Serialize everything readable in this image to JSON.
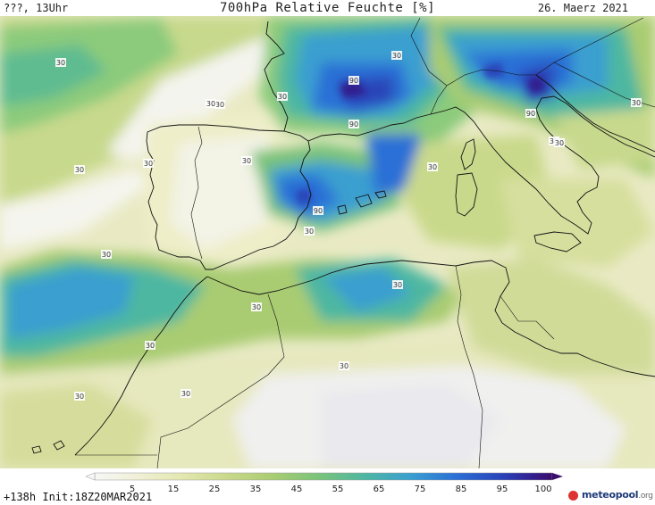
{
  "header": {
    "left_text": "???, 13Uhr",
    "title": "700hPa Relative Feuchte [%]",
    "date": "26. Maerz 2021"
  },
  "footer": {
    "run_info": "+138h  Init:18Z20MAR2021",
    "logo_text": "meteopool",
    "logo_suffix": ".org"
  },
  "legend": {
    "ticks": [
      "5",
      "15",
      "25",
      "35",
      "45",
      "55",
      "65",
      "75",
      "85",
      "95",
      "100"
    ],
    "colors": [
      "#f7f7f7",
      "#f1f0d8",
      "#e3e7b0",
      "#c9d98b",
      "#a9cc72",
      "#7ac37a",
      "#4eb7a1",
      "#3a9fd0",
      "#2b6fd6",
      "#2944b8",
      "#331d8c",
      "#3a0e6b"
    ]
  },
  "contour_labels": [
    "30",
    "30",
    "30",
    "30",
    "30",
    "30",
    "30",
    "30",
    "30",
    "30",
    "30",
    "30",
    "30",
    "30",
    "30",
    "30",
    "30",
    "30",
    "30",
    "30",
    "90",
    "90",
    "90",
    "90"
  ]
}
